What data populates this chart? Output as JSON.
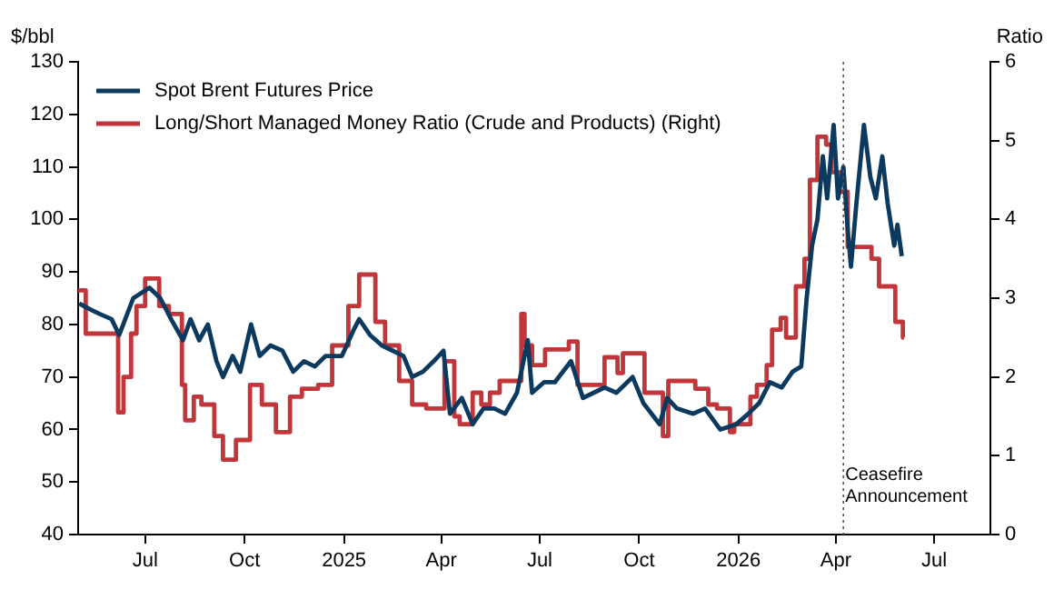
{
  "chart_data": {
    "type": "line",
    "ylabel": "$/bbl",
    "y2label": "Ratio",
    "xlim": [
      "2024-04-30",
      "2026-08-22"
    ],
    "xticks": [
      {
        "value": "2024-07-01",
        "label": "Jul"
      },
      {
        "value": "2024-10-01",
        "label": "Oct"
      },
      {
        "value": "2025-01-01",
        "label": "2025"
      },
      {
        "value": "2025-04-01",
        "label": "Apr"
      },
      {
        "value": "2025-07-01",
        "label": "Jul"
      },
      {
        "value": "2025-10-01",
        "label": "Oct"
      },
      {
        "value": "2026-01-01",
        "label": "2026"
      },
      {
        "value": "2026-04-01",
        "label": "Apr"
      },
      {
        "value": "2026-07-01",
        "label": "Jul"
      }
    ],
    "ylim": [
      40,
      130
    ],
    "yticks": [
      40,
      50,
      60,
      70,
      80,
      90,
      100,
      110,
      120,
      130
    ],
    "y2lim": [
      0,
      6
    ],
    "y2ticks": [
      0,
      1,
      2,
      3,
      4,
      5,
      6
    ],
    "legend": "top left",
    "grid": false,
    "ref_lines": [
      {
        "axis": "x",
        "value": "2026-04-08",
        "label": "Ceasefire Announcement",
        "color": "#555555",
        "line_style": "dotted"
      }
    ],
    "series": [
      {
        "name": "Spot Brent Futures Price",
        "color": "#0b3a5e",
        "x": [
          "2024-05-01",
          "2024-05-10",
          "2024-05-20",
          "2024-05-31",
          "2024-06-07",
          "2024-06-20",
          "2024-07-05",
          "2024-07-15",
          "2024-07-25",
          "2024-08-05",
          "2024-08-12",
          "2024-08-20",
          "2024-08-28",
          "2024-09-05",
          "2024-09-11",
          "2024-09-20",
          "2024-09-27",
          "2024-10-07",
          "2024-10-15",
          "2024-10-25",
          "2024-11-05",
          "2024-11-15",
          "2024-11-25",
          "2024-12-05",
          "2024-12-15",
          "2024-12-30",
          "2025-01-10",
          "2025-01-15",
          "2025-01-25",
          "2025-02-05",
          "2025-02-15",
          "2025-02-25",
          "2025-03-05",
          "2025-03-15",
          "2025-03-25",
          "2025-04-03",
          "2025-04-09",
          "2025-04-20",
          "2025-04-30",
          "2025-05-10",
          "2025-05-20",
          "2025-05-30",
          "2025-06-10",
          "2025-06-20",
          "2025-06-24",
          "2025-07-05",
          "2025-07-15",
          "2025-07-30",
          "2025-08-10",
          "2025-08-20",
          "2025-08-30",
          "2025-09-10",
          "2025-09-25",
          "2025-10-05",
          "2025-10-20",
          "2025-10-27",
          "2025-11-05",
          "2025-11-20",
          "2025-12-01",
          "2025-12-15",
          "2025-12-30",
          "2026-01-10",
          "2026-01-20",
          "2026-01-30",
          "2026-02-10",
          "2026-02-20",
          "2026-02-28",
          "2026-03-05",
          "2026-03-10",
          "2026-03-15",
          "2026-03-20",
          "2026-03-24",
          "2026-03-30",
          "2026-04-03",
          "2026-04-08",
          "2026-04-12",
          "2026-04-15",
          "2026-04-20",
          "2026-04-27",
          "2026-05-03",
          "2026-05-08",
          "2026-05-14",
          "2026-05-19",
          "2026-05-25",
          "2026-05-28",
          "2026-06-01"
        ],
        "values": [
          84,
          83,
          82,
          81,
          78,
          85,
          87,
          85,
          81,
          77,
          81,
          77,
          80,
          73,
          70,
          74,
          71,
          80,
          74,
          76,
          75,
          71,
          73,
          72,
          74,
          74,
          79,
          81,
          78,
          76,
          75,
          74,
          70,
          71,
          73,
          75,
          63,
          66,
          61,
          64,
          64,
          63,
          67,
          77,
          67,
          69,
          69,
          73,
          66,
          67,
          68,
          67,
          70,
          65,
          61,
          66,
          64,
          63,
          64,
          60,
          61,
          63,
          65,
          69,
          68,
          71,
          72,
          85,
          95,
          100,
          112,
          104,
          118,
          104,
          110,
          98,
          91,
          103,
          118,
          108,
          104,
          112,
          103,
          95,
          99,
          93
        ]
      },
      {
        "name": "Long/Short Managed Money Ratio (Crude and Products) (Right)",
        "type": "step",
        "axis": "y2",
        "color": "#c0363a",
        "x": [
          "2024-04-30",
          "2024-05-07",
          "2024-06-06",
          "2024-06-11",
          "2024-06-18",
          "2024-06-23",
          "2024-07-01",
          "2024-07-14",
          "2024-07-23",
          "2024-08-04",
          "2024-08-07",
          "2024-08-15",
          "2024-08-22",
          "2024-09-03",
          "2024-09-11",
          "2024-09-23",
          "2024-10-06",
          "2024-10-17",
          "2024-10-30",
          "2024-11-12",
          "2024-11-23",
          "2024-12-08",
          "2024-12-21",
          "2025-01-05",
          "2025-01-15",
          "2025-01-30",
          "2025-02-08",
          "2025-02-21",
          "2025-03-05",
          "2025-03-18",
          "2025-04-04",
          "2025-04-13",
          "2025-04-18",
          "2025-04-30",
          "2025-05-08",
          "2025-05-16",
          "2025-05-25",
          "2025-06-14",
          "2025-06-17",
          "2025-06-24",
          "2025-07-06",
          "2025-07-28",
          "2025-08-05",
          "2025-08-30",
          "2025-09-11",
          "2025-09-16",
          "2025-10-06",
          "2025-10-23",
          "2025-10-28",
          "2025-11-22",
          "2025-12-04",
          "2025-12-12",
          "2025-12-24",
          "2025-12-28",
          "2026-01-12",
          "2026-01-18",
          "2026-01-27",
          "2026-02-01",
          "2026-02-09",
          "2026-02-14",
          "2026-02-23",
          "2026-03-03",
          "2026-03-08",
          "2026-03-15",
          "2026-03-23",
          "2026-03-28",
          "2026-04-04",
          "2026-04-12",
          "2026-05-04",
          "2026-05-11",
          "2026-05-26",
          "2026-06-02",
          "2026-06-03"
        ],
        "values": [
          3.1,
          2.55,
          1.55,
          2.0,
          2.55,
          2.9,
          3.25,
          2.9,
          2.8,
          1.9,
          1.45,
          1.75,
          1.65,
          1.25,
          0.95,
          1.2,
          1.9,
          1.65,
          1.3,
          1.75,
          1.85,
          1.9,
          2.4,
          2.9,
          3.3,
          2.7,
          2.4,
          1.95,
          1.65,
          1.6,
          2.2,
          1.5,
          1.4,
          1.8,
          1.65,
          1.8,
          1.95,
          2.8,
          2.4,
          2.15,
          2.35,
          2.45,
          1.9,
          2.25,
          2.05,
          2.3,
          1.8,
          1.25,
          1.95,
          1.85,
          1.65,
          1.6,
          1.3,
          1.4,
          1.75,
          1.9,
          2.15,
          2.6,
          2.75,
          2.5,
          3.15,
          3.5,
          4.5,
          5.05,
          4.95,
          4.6,
          4.35,
          3.65,
          3.5,
          3.15,
          2.7,
          2.5,
          2.5
        ]
      }
    ]
  }
}
